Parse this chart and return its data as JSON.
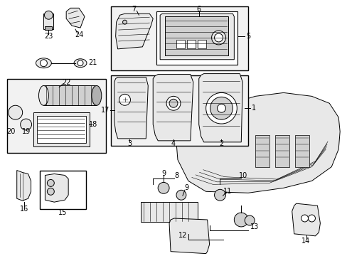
{
  "background_color": "#ffffff",
  "line_color": "#000000",
  "fig_width": 4.89,
  "fig_height": 3.6,
  "dpi": 100,
  "gray_fill": "#e8e8e8",
  "gray_mid": "#d0d0d0",
  "gray_dark": "#b0b0b0",
  "box_bg": "#f2f2f2"
}
